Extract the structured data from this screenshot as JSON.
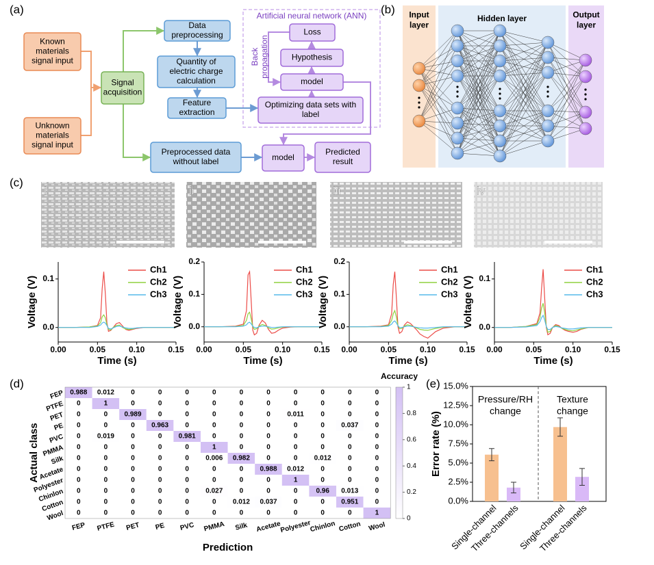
{
  "panel_labels": [
    "(a)",
    "(b)",
    "(c)",
    "(d)",
    "(e)"
  ],
  "flowchart": {
    "ann_title": "Artificial neural network (ANN)",
    "back_propagation": [
      "Back",
      "propagation"
    ],
    "boxes": [
      {
        "lines": [
          "Known",
          "materials",
          "signal input"
        ]
      },
      {
        "lines": [
          "Unknown",
          "materials",
          "signal input"
        ]
      },
      {
        "lines": [
          "Signal",
          "acquisition"
        ]
      },
      {
        "lines": [
          "Data",
          "preprocessing"
        ]
      },
      {
        "lines": [
          "Quantity of",
          "electric charge",
          "calculation"
        ]
      },
      {
        "lines": [
          "Feature",
          "extraction"
        ]
      },
      {
        "lines": [
          "Preprocessed data",
          "without label"
        ]
      },
      {
        "lines": [
          "model"
        ]
      },
      {
        "lines": [
          "Predicted",
          "result"
        ]
      },
      {
        "lines": [
          "Loss"
        ]
      },
      {
        "lines": [
          "Hypothesis"
        ]
      },
      {
        "lines": [
          "model"
        ]
      },
      {
        "lines": [
          "Optimizing data sets with",
          "label"
        ]
      }
    ]
  },
  "network": {
    "layers": [
      {
        "lines": [
          "Input",
          "layer"
        ]
      },
      {
        "lines": [
          "Hidden layer"
        ]
      },
      {
        "lines": [
          "Output",
          "layer"
        ]
      }
    ]
  },
  "images": [
    "i",
    "ii",
    "iii",
    "iv"
  ],
  "chart_data": [
    {
      "type": "line",
      "xlabel": "Time (s)",
      "ylabel": "Voltage (V)",
      "x": [
        0,
        0.02,
        0.04,
        0.05,
        0.054,
        0.056,
        0.058,
        0.06,
        0.062,
        0.064,
        0.067,
        0.07,
        0.074,
        0.078,
        0.082,
        0.086,
        0.09,
        0.095,
        0.1,
        0.11,
        0.12,
        0.135,
        0.15
      ],
      "series": [
        {
          "name": "Ch1",
          "color": "#ec4b47",
          "values": [
            0,
            0,
            0.001,
            0.004,
            0.02,
            0.08,
            0.115,
            0.07,
            0.01,
            -0.008,
            -0.006,
            0,
            0.008,
            0.01,
            0.003,
            -0.004,
            -0.006,
            -0.004,
            -0.002,
            0,
            0,
            0,
            0
          ]
        },
        {
          "name": "Ch2",
          "color": "#8fd13f",
          "values": [
            0,
            0,
            0.001,
            0.003,
            0.01,
            0.022,
            0.026,
            0.02,
            0.006,
            -0.004,
            -0.005,
            0,
            0.004,
            0.005,
            0,
            -0.003,
            -0.004,
            -0.003,
            -0.001,
            0,
            0,
            0,
            0
          ]
        },
        {
          "name": "Ch3",
          "color": "#55b8ea",
          "values": [
            0,
            0,
            0,
            0.002,
            0.005,
            0.009,
            0.011,
            0.009,
            0.004,
            -0.002,
            -0.003,
            -0.001,
            0.002,
            0.003,
            0.001,
            -0.001,
            -0.002,
            -0.002,
            -0.001,
            0,
            0,
            0,
            0
          ]
        }
      ],
      "xlim": [
        0,
        0.15
      ],
      "ylim": [
        -0.03,
        0.135
      ],
      "xticks": [
        {
          "value": 0,
          "label": "0.00"
        },
        {
          "value": 0.05,
          "label": "0.05"
        },
        {
          "value": 0.1,
          "label": "0.10"
        },
        {
          "value": 0.15,
          "label": "0.15"
        }
      ],
      "yticks": [
        {
          "value": 0,
          "label": "0.0"
        },
        0.1
      ]
    },
    {
      "type": "line",
      "xlabel": "Time (s)",
      "ylabel": "Voltage (V)",
      "x": [
        0,
        0.02,
        0.04,
        0.05,
        0.054,
        0.056,
        0.058,
        0.06,
        0.062,
        0.064,
        0.067,
        0.07,
        0.074,
        0.078,
        0.082,
        0.086,
        0.09,
        0.095,
        0.1,
        0.11,
        0.12,
        0.135,
        0.15
      ],
      "series": [
        {
          "name": "Ch1",
          "color": "#ec4b47",
          "values": [
            0,
            0,
            0.002,
            0.008,
            0.05,
            0.16,
            0.17,
            0.08,
            -0.01,
            -0.025,
            -0.02,
            0.005,
            0.02,
            0.012,
            -0.008,
            -0.02,
            -0.018,
            -0.01,
            -0.004,
            -0.001,
            0,
            0,
            0
          ]
        },
        {
          "name": "Ch2",
          "color": "#8fd13f",
          "values": [
            0,
            0,
            0.001,
            0.004,
            0.02,
            0.04,
            0.045,
            0.025,
            0,
            -0.008,
            -0.006,
            0.002,
            0.007,
            0.004,
            -0.003,
            -0.007,
            -0.006,
            -0.003,
            -0.001,
            0,
            0,
            0,
            0
          ]
        },
        {
          "name": "Ch3",
          "color": "#55b8ea",
          "values": [
            0,
            0,
            0,
            0.002,
            0.006,
            0.012,
            0.014,
            0.009,
            0.002,
            -0.002,
            -0.003,
            0,
            0.002,
            0.002,
            0,
            -0.002,
            -0.002,
            -0.001,
            0,
            0,
            0,
            0,
            0
          ]
        }
      ],
      "xlim": [
        0,
        0.15
      ],
      "ylim": [
        -0.047,
        0.2
      ],
      "xticks": [
        {
          "value": 0,
          "label": "0.00"
        },
        {
          "value": 0.05,
          "label": "0.05"
        },
        {
          "value": 0.1,
          "label": "0.10"
        },
        {
          "value": 0.15,
          "label": "0.15"
        }
      ],
      "yticks": [
        {
          "value": 0,
          "label": "0.0"
        },
        0.1,
        0.2
      ]
    },
    {
      "type": "line",
      "xlabel": "Time (s)",
      "ylabel": "Voltage (V)",
      "x": [
        0,
        0.02,
        0.04,
        0.05,
        0.054,
        0.056,
        0.058,
        0.06,
        0.062,
        0.064,
        0.067,
        0.07,
        0.074,
        0.078,
        0.082,
        0.086,
        0.09,
        0.095,
        0.1,
        0.11,
        0.12,
        0.135,
        0.15
      ],
      "series": [
        {
          "name": "Ch1",
          "color": "#ec4b47",
          "values": [
            0,
            0,
            0.002,
            0.006,
            0.04,
            0.13,
            0.17,
            0.09,
            0,
            -0.02,
            -0.015,
            0.005,
            0.015,
            0.01,
            0,
            -0.01,
            -0.022,
            -0.03,
            -0.035,
            -0.015,
            -0.004,
            0,
            0
          ]
        },
        {
          "name": "Ch2",
          "color": "#8fd13f",
          "values": [
            0,
            0,
            0.001,
            0.004,
            0.02,
            0.04,
            0.05,
            0.03,
            0.004,
            -0.006,
            -0.005,
            0.002,
            0.006,
            0.004,
            0,
            -0.004,
            -0.008,
            -0.01,
            -0.011,
            -0.005,
            -0.001,
            0,
            0
          ]
        },
        {
          "name": "Ch3",
          "color": "#55b8ea",
          "values": [
            0,
            0,
            0,
            0.002,
            0.008,
            0.015,
            0.018,
            0.012,
            0.003,
            -0.002,
            -0.002,
            0,
            0.002,
            0.002,
            0,
            -0.002,
            -0.003,
            -0.004,
            -0.004,
            -0.002,
            0,
            0,
            0
          ]
        }
      ],
      "xlim": [
        0,
        0.15
      ],
      "ylim": [
        -0.047,
        0.2
      ],
      "xticks": [
        {
          "value": 0,
          "label": "0.00"
        },
        {
          "value": 0.05,
          "label": "0.05"
        },
        {
          "value": 0.1,
          "label": "0.10"
        },
        {
          "value": 0.15,
          "label": "0.15"
        }
      ],
      "yticks": [
        {
          "value": 0,
          "label": "0.0"
        },
        0.1,
        0.2
      ]
    },
    {
      "type": "line",
      "xlabel": "Time (s)",
      "ylabel": "Voltage (V)",
      "x": [
        0,
        0.02,
        0.04,
        0.054,
        0.058,
        0.06,
        0.062,
        0.064,
        0.066,
        0.068,
        0.071,
        0.074,
        0.078,
        0.082,
        0.086,
        0.09,
        0.094,
        0.1,
        0.105,
        0.11,
        0.12,
        0.135,
        0.15
      ],
      "series": [
        {
          "name": "Ch1",
          "color": "#ec4b47",
          "values": [
            0,
            0,
            0.002,
            0.008,
            0.03,
            0.08,
            0.12,
            0.06,
            0,
            -0.015,
            -0.012,
            0,
            0.006,
            0.004,
            -0.002,
            -0.006,
            -0.008,
            -0.01,
            -0.008,
            -0.004,
            0,
            0,
            0
          ]
        },
        {
          "name": "Ch2",
          "color": "#8fd13f",
          "values": [
            0,
            0,
            0.002,
            0.006,
            0.02,
            0.04,
            0.05,
            0.03,
            0.002,
            -0.01,
            -0.008,
            0,
            0.004,
            0.002,
            -0.002,
            -0.004,
            -0.006,
            -0.007,
            -0.005,
            -0.003,
            0,
            0,
            0
          ]
        },
        {
          "name": "Ch3",
          "color": "#55b8ea",
          "values": [
            0,
            0,
            0.001,
            0.004,
            0.012,
            0.02,
            0.025,
            0.015,
            0.002,
            -0.004,
            -0.004,
            0,
            0.002,
            0.001,
            -0.001,
            -0.002,
            -0.003,
            -0.003,
            -0.002,
            -0.001,
            0,
            0,
            0
          ]
        }
      ],
      "xlim": [
        0,
        0.15
      ],
      "ylim": [
        -0.03,
        0.135
      ],
      "xticks": [
        {
          "value": 0,
          "label": "0.00"
        },
        {
          "value": 0.05,
          "label": "0.05"
        },
        {
          "value": 0.1,
          "label": "0.10"
        },
        {
          "value": 0.15,
          "label": "0.15"
        }
      ],
      "yticks": [
        {
          "value": 0,
          "label": "0.0"
        },
        0.1
      ]
    },
    {
      "type": "heatmap",
      "xlabel": "Prediction",
      "ylabel": "Actual class",
      "colorbar_label": "Accuracy",
      "x_categories": [
        "FEP",
        "PTFE",
        "PET",
        "PE",
        "PVC",
        "PMMA",
        "Silk",
        "Acetate",
        "Polyester",
        "Chinlon",
        "Cotton",
        "Wool"
      ],
      "y_categories": [
        "FEP",
        "PTFE",
        "PET",
        "PE",
        "PVC",
        "PMMA",
        "Silk",
        "Acetate",
        "Polyester",
        "Chinlon",
        "Cotton",
        "Wool"
      ],
      "matrix": [
        [
          0.988,
          0.012,
          0,
          0,
          0,
          0,
          0,
          0,
          0,
          0,
          0,
          0
        ],
        [
          0,
          1,
          0,
          0,
          0,
          0,
          0,
          0,
          0,
          0,
          0,
          0
        ],
        [
          0,
          0,
          0.989,
          0,
          0,
          0,
          0,
          0,
          0.011,
          0,
          0,
          0
        ],
        [
          0,
          0,
          0,
          0.963,
          0,
          0,
          0,
          0,
          0,
          0,
          0.037,
          0
        ],
        [
          0,
          0.019,
          0,
          0,
          0.981,
          0,
          0,
          0,
          0,
          0,
          0,
          0
        ],
        [
          0,
          0,
          0,
          0,
          0,
          1,
          0,
          0,
          0,
          0,
          0,
          0
        ],
        [
          0,
          0,
          0,
          0,
          0,
          0.006,
          0.982,
          0,
          0,
          0.012,
          0,
          0
        ],
        [
          0,
          0,
          0,
          0,
          0,
          0,
          0,
          0.988,
          0.012,
          0,
          0,
          0
        ],
        [
          0,
          0,
          0,
          0,
          0,
          0,
          0,
          0,
          1,
          0,
          0,
          0
        ],
        [
          0,
          0,
          0,
          0,
          0,
          0.027,
          0,
          0,
          0,
          0.96,
          0.013,
          0
        ],
        [
          0,
          0,
          0,
          0,
          0,
          0,
          0.012,
          0.037,
          0,
          0,
          0.951,
          0
        ],
        [
          0,
          0,
          0,
          0,
          0,
          0,
          0,
          0,
          0,
          0,
          0,
          1
        ]
      ],
      "clim": [
        0,
        1
      ],
      "colors": [
        "#ffffff",
        "#d3c0f4"
      ],
      "cticks": [
        0,
        0.2,
        0.4,
        0.6,
        0.8,
        1
      ]
    },
    {
      "type": "bar",
      "ylabel": "Error rate (%)",
      "categories": [
        "Single-channel",
        "Three-channels",
        "Single-channel",
        "Three-channels"
      ],
      "values": [
        6.1,
        1.8,
        9.7,
        3.2
      ],
      "errors": [
        0.8,
        0.7,
        1.2,
        1.1
      ],
      "colors": [
        "#f7c08f",
        "#d9b9f7",
        "#f7c08f",
        "#d9b9f7"
      ],
      "groups": [
        {
          "lines": [
            "Pressure/RH",
            "change"
          ]
        },
        {
          "lines": [
            "Texture",
            "change"
          ]
        }
      ],
      "ylim": [
        0,
        15
      ],
      "yticks": [
        {
          "value": 0,
          "label": "0.0%"
        },
        {
          "value": 2.5,
          "label": "2.5%"
        },
        {
          "value": 5,
          "label": "5.0%"
        },
        {
          "value": 7.5,
          "label": "7.5%"
        },
        {
          "value": 10,
          "label": "10.0%"
        },
        {
          "value": 12.5,
          "label": "12.5%"
        },
        {
          "value": 15,
          "label": "15.0%"
        }
      ]
    }
  ]
}
